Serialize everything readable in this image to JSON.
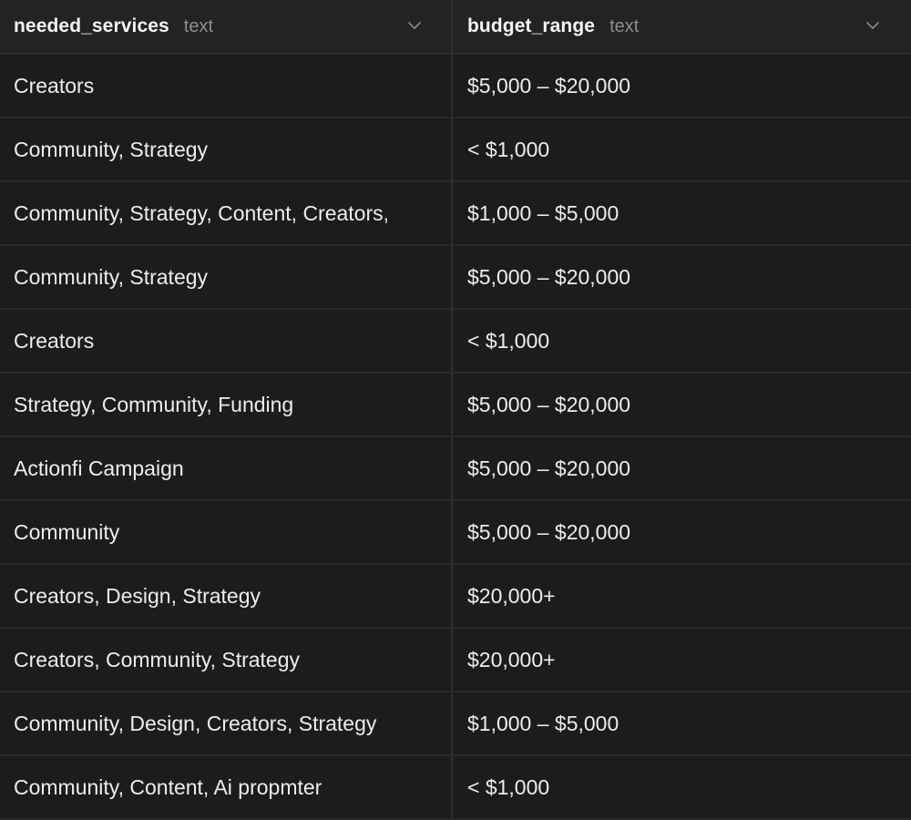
{
  "columns": [
    {
      "name": "needed_services",
      "type": "text",
      "icon": "chevron-down-icon"
    },
    {
      "name": "budget_range",
      "type": "text",
      "icon": "chevron-down-icon"
    }
  ],
  "rows": [
    {
      "needed_services": "Creators",
      "budget_range": "$5,000 – $20,000"
    },
    {
      "needed_services": "Community, Strategy",
      "budget_range": "< $1,000"
    },
    {
      "needed_services": "Community, Strategy, Content, Creators,",
      "budget_range": "$1,000 – $5,000"
    },
    {
      "needed_services": "Community, Strategy",
      "budget_range": "$5,000 – $20,000"
    },
    {
      "needed_services": "Creators",
      "budget_range": "< $1,000"
    },
    {
      "needed_services": "Strategy, Community, Funding",
      "budget_range": "$5,000 – $20,000"
    },
    {
      "needed_services": "Actionfi Campaign",
      "budget_range": "$5,000 – $20,000"
    },
    {
      "needed_services": "Community",
      "budget_range": "$5,000 – $20,000"
    },
    {
      "needed_services": "Creators, Design, Strategy",
      "budget_range": "$20,000+"
    },
    {
      "needed_services": "Creators, Community, Strategy",
      "budget_range": "$20,000+"
    },
    {
      "needed_services": "Community, Design, Creators, Strategy",
      "budget_range": "$1,000 – $5,000"
    },
    {
      "needed_services": "Community, Content, Ai propmter",
      "budget_range": "< $1,000"
    }
  ],
  "colors": {
    "background": "#1c1c1c",
    "header_background": "#232323",
    "border": "#2e2e2e",
    "text": "#ededed",
    "muted_text": "#8f8f8f"
  }
}
